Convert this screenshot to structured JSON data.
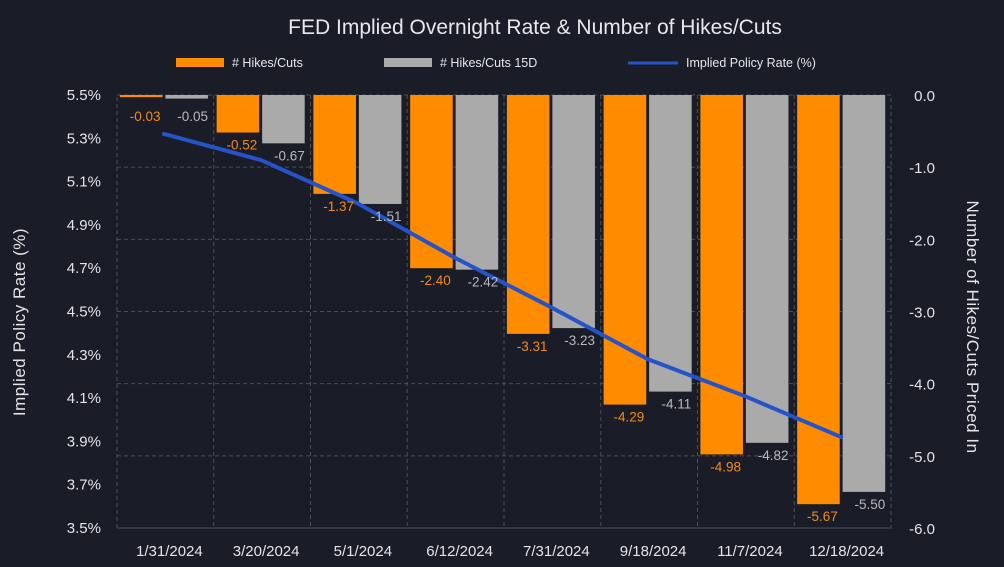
{
  "chart_data": {
    "type": "bar",
    "title": "FED Implied Overnight Rate & Number of Hikes/Cuts",
    "ylabel_left": "Implied Policy Rate (%)",
    "ylabel_right": "Number of Hikes/Cuts  Priced In",
    "categories": [
      "1/31/2024",
      "3/20/2024",
      "5/1/2024",
      "6/12/2024",
      "7/31/2024",
      "9/18/2024",
      "11/7/2024",
      "12/18/2024"
    ],
    "y_left": {
      "min": 3.5,
      "max": 5.5,
      "ticks": [
        5.5,
        5.3,
        5.1,
        4.9,
        4.7,
        4.5,
        4.3,
        4.1,
        3.9,
        3.7,
        3.5
      ],
      "tick_labels": [
        "5.5%",
        "5.3%",
        "5.1%",
        "4.9%",
        "4.7%",
        "4.5%",
        "4.3%",
        "4.1%",
        "3.9%",
        "3.7%",
        "3.5%"
      ]
    },
    "y_right": {
      "min": -6.0,
      "max": 0.0,
      "ticks": [
        0,
        -1,
        -2,
        -3,
        -4,
        -5,
        -6
      ],
      "tick_labels": [
        "0.0",
        "-1.0",
        "-2.0",
        "-3.0",
        "-4.0",
        "-5.0",
        "-6.0"
      ]
    },
    "series": [
      {
        "name": "# Hikes/Cuts",
        "kind": "bar",
        "axis": "right",
        "color": "#ff8c00",
        "values": [
          -0.03,
          -0.52,
          -1.37,
          -2.4,
          -3.31,
          -4.29,
          -4.98,
          -5.67
        ],
        "labels": [
          "-0.03",
          "-0.52",
          "-1.37",
          "-2.40",
          "-3.31",
          "-4.29",
          "-4.98",
          "-5.67"
        ]
      },
      {
        "name": "# Hikes/Cuts 15D",
        "kind": "bar",
        "axis": "right",
        "color": "#aaaaaa",
        "values": [
          -0.05,
          -0.67,
          -1.51,
          -2.42,
          -3.23,
          -4.11,
          -4.82,
          -5.5
        ],
        "labels": [
          "-0.05",
          "-0.67",
          "-1.51",
          "-2.42",
          "-3.23",
          "-4.11",
          "-4.82",
          "-5.50"
        ]
      },
      {
        "name": "Implied Policy Rate (%)",
        "kind": "line",
        "axis": "left",
        "color": "#2553c9",
        "values": [
          5.32,
          5.2,
          5.0,
          4.75,
          4.52,
          4.28,
          4.11,
          3.92
        ]
      }
    ],
    "legend_position": "top-center",
    "grid": "horizontal-dashed"
  }
}
